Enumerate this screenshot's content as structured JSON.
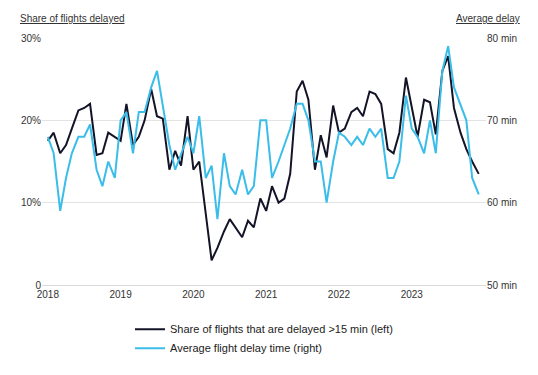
{
  "chart_data": {
    "type": "line",
    "y_label": "Share of flights delayed",
    "y2_label": "Average delay",
    "x": [
      2018.0,
      2018.08,
      2018.17,
      2018.25,
      2018.33,
      2018.42,
      2018.5,
      2018.58,
      2018.67,
      2018.75,
      2018.83,
      2018.92,
      2019.0,
      2019.08,
      2019.17,
      2019.25,
      2019.33,
      2019.42,
      2019.5,
      2019.58,
      2019.67,
      2019.75,
      2019.83,
      2019.92,
      2020.0,
      2020.08,
      2020.17,
      2020.25,
      2020.33,
      2020.42,
      2020.5,
      2020.58,
      2020.67,
      2020.75,
      2020.83,
      2020.92,
      2021.0,
      2021.08,
      2021.17,
      2021.25,
      2021.33,
      2021.42,
      2021.5,
      2021.58,
      2021.67,
      2021.75,
      2021.83,
      2021.92,
      2022.0,
      2022.08,
      2022.17,
      2022.25,
      2022.33,
      2022.42,
      2022.5,
      2022.58,
      2022.67,
      2022.75,
      2022.83,
      2022.92,
      2023.0,
      2023.08,
      2023.17,
      2023.25,
      2023.33,
      2023.42,
      2023.5,
      2023.58,
      2023.67,
      2023.75,
      2023.83,
      2023.92
    ],
    "series": [
      {
        "name": "Share of flights that are delayed >15 min (left)",
        "color": "#141428",
        "axis": "y",
        "values": [
          17.5,
          18.5,
          16,
          17,
          19,
          21.2,
          21.5,
          22,
          15.8,
          16,
          18.5,
          18,
          17.5,
          22,
          17,
          18,
          20,
          23.8,
          20.5,
          20.2,
          14,
          16.3,
          14.5,
          20.5,
          14,
          15,
          9,
          3,
          4.5,
          6.5,
          8,
          7,
          5.8,
          7.8,
          7,
          10.5,
          9,
          12,
          10,
          10.5,
          13.5,
          23.5,
          24.8,
          22.5,
          14,
          18.2,
          15.5,
          21.8,
          18.5,
          19,
          21,
          21.5,
          20.5,
          23.5,
          23.2,
          22,
          16.5,
          16,
          18.5,
          25.2,
          21.5,
          18,
          22.5,
          22.2,
          18.3,
          26,
          27.8,
          21.5,
          18.5,
          16.5,
          15,
          13.5
        ]
      },
      {
        "name": "Average flight delay time (right)",
        "color": "#3bbdea",
        "axis": "y2",
        "values": [
          68,
          66,
          59,
          63,
          66,
          68,
          68,
          69.5,
          64,
          62,
          65,
          63,
          70,
          71,
          66,
          71,
          71,
          74,
          76,
          72,
          67,
          64,
          66,
          68,
          66,
          70.5,
          63,
          64.5,
          58,
          66,
          62,
          61,
          64,
          61,
          62,
          70,
          70,
          63,
          65,
          67,
          69,
          72,
          72,
          70,
          65,
          65,
          60,
          65,
          68.5,
          68,
          67,
          68,
          67,
          69,
          68,
          69,
          63,
          63,
          65,
          73,
          69,
          68,
          66,
          70,
          66,
          76,
          79,
          74,
          72,
          70,
          63,
          61
        ]
      }
    ],
    "xlim": [
      2017.92,
      2024.02
    ],
    "xticks": [
      2018,
      2019,
      2020,
      2021,
      2022,
      2023
    ],
    "ylim": [
      0,
      30
    ],
    "yticks": [
      0,
      {
        "value": 10,
        "label": "10%"
      },
      {
        "value": 20,
        "label": "20%"
      },
      {
        "value": 30,
        "label": "30%"
      }
    ],
    "y2lim": [
      50,
      80
    ],
    "y2ticks": [
      {
        "value": 50,
        "label": "50 min"
      },
      {
        "value": 60,
        "label": "60 min"
      },
      {
        "value": 70,
        "label": "70 min"
      },
      {
        "value": 80,
        "label": "80 min"
      }
    ],
    "grid": true,
    "legend": "bottom"
  }
}
